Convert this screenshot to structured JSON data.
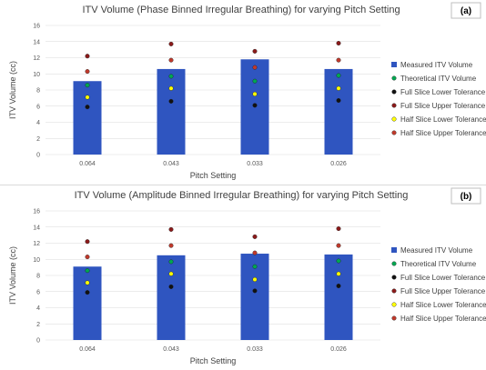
{
  "chart_data": [
    {
      "type": "bar",
      "panel_label": "(a)",
      "title": "ITV Volume (Phase Binned Irregular Breathing) for varying Pitch Setting",
      "xlabel": "Pitch Setting",
      "ylabel": "ITV Volume (cc)",
      "ylim": [
        0,
        16
      ],
      "yticks": [
        0,
        2,
        4,
        6,
        8,
        10,
        12,
        14,
        16
      ],
      "grid": true,
      "legend_position": "right",
      "categories": [
        "0.064",
        "0.043",
        "0.033",
        "0.026"
      ],
      "series": [
        {
          "name": "Measured ITV Volume",
          "type": "bar",
          "color": "#2f55c0",
          "values": [
            9.1,
            10.6,
            11.8,
            10.6
          ]
        },
        {
          "name": "Theoretical ITV Volume",
          "type": "point",
          "color": "#00a651",
          "values": [
            8.6,
            9.7,
            9.1,
            9.8
          ]
        },
        {
          "name": "Full Slice Lower Tolerance",
          "type": "point",
          "color": "#111111",
          "values": [
            5.9,
            6.6,
            6.1,
            6.7
          ]
        },
        {
          "name": "Full Slice Upper Tolerance",
          "type": "point",
          "color": "#8b1a1a",
          "values": [
            12.2,
            13.7,
            12.8,
            13.8
          ]
        },
        {
          "name": "Half Slice Lower Tolerance",
          "type": "point",
          "color": "#ffff00",
          "values": [
            7.1,
            8.2,
            7.5,
            8.2
          ]
        },
        {
          "name": "Half Slice Upper Tolerance",
          "type": "point",
          "color": "#c0392b",
          "values": [
            10.3,
            11.7,
            10.8,
            11.7
          ]
        }
      ]
    },
    {
      "type": "bar",
      "panel_label": "(b)",
      "title": "ITV Volume (Amplitude Binned Irregular Breathing) for varying Pitch Setting",
      "xlabel": "Pitch Setting",
      "ylabel": "ITV Volume (cc)",
      "ylim": [
        0,
        16
      ],
      "yticks": [
        0,
        2,
        4,
        6,
        8,
        10,
        12,
        14,
        16
      ],
      "grid": true,
      "legend_position": "right",
      "categories": [
        "0.064",
        "0.043",
        "0.033",
        "0.026"
      ],
      "series": [
        {
          "name": "Measured ITV Volume",
          "type": "bar",
          "color": "#2f55c0",
          "values": [
            9.1,
            10.5,
            10.7,
            10.6
          ]
        },
        {
          "name": "Theoretical ITV Volume",
          "type": "point",
          "color": "#00a651",
          "values": [
            8.6,
            9.7,
            9.1,
            9.8
          ]
        },
        {
          "name": "Full Slice Lower Tolerance",
          "type": "point",
          "color": "#111111",
          "values": [
            5.9,
            6.6,
            6.1,
            6.7
          ]
        },
        {
          "name": "Full Slice Upper Tolerance",
          "type": "point",
          "color": "#8b1a1a",
          "values": [
            12.2,
            13.7,
            12.8,
            13.8
          ]
        },
        {
          "name": "Half Slice Lower Tolerance",
          "type": "point",
          "color": "#ffff00",
          "values": [
            7.1,
            8.2,
            7.5,
            8.2
          ]
        },
        {
          "name": "Half Slice Upper Tolerance",
          "type": "point",
          "color": "#c0392b",
          "values": [
            10.3,
            11.7,
            10.8,
            11.7
          ]
        }
      ]
    }
  ]
}
